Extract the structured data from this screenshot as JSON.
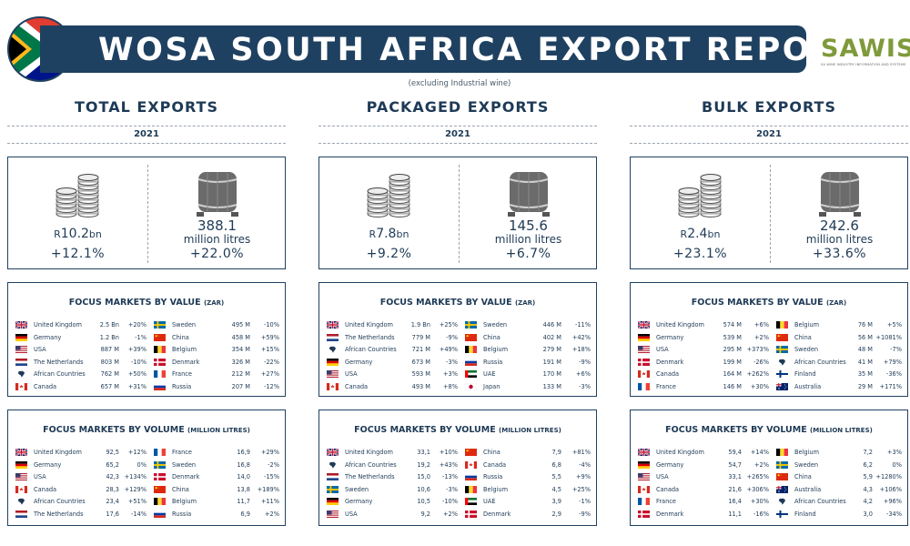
{
  "header": {
    "title": "WOSA SOUTH AFRICA EXPORT REPORT",
    "subtitle": "(excluding Industrial wine)",
    "logo_text": "SAWIS",
    "logo_sub": "SA WINE INDUSTRY INFORMATION AND SYSTEMS"
  },
  "labels": {
    "value_title": "FOCUS MARKETS BY VALUE",
    "value_unit": "(ZAR)",
    "volume_title": "FOCUS MARKETS BY VOLUME",
    "volume_unit": "(MILLION LITRES)"
  },
  "colors": {
    "navy": "#1f4161",
    "sawis_green": "#7f9a3a"
  },
  "columns": [
    {
      "title": "TOTAL EXPORTS",
      "year": "2021",
      "kpi": {
        "currency": "R",
        "value": "10.2",
        "value_suffix": "bn",
        "value_growth": "+12.1%",
        "volume": "388.1",
        "volume_unit": "million litres",
        "volume_growth": "+22.0%"
      },
      "value_left": [
        {
          "country": "United Kingdom",
          "flag": "uk",
          "amount": "2.5 Bn",
          "change": "+20%"
        },
        {
          "country": "Germany",
          "flag": "de",
          "amount": "1.2 Bn",
          "change": "-1%"
        },
        {
          "country": "USA",
          "flag": "us",
          "amount": "887 M",
          "change": "+39%"
        },
        {
          "country": "The Netherlands",
          "flag": "nl",
          "amount": "803 M",
          "change": "-10%"
        },
        {
          "country": "African Countries",
          "flag": "af",
          "amount": "762 M",
          "change": "+50%"
        },
        {
          "country": "Canada",
          "flag": "ca",
          "amount": "657 M",
          "change": "+31%"
        }
      ],
      "value_right": [
        {
          "country": "Sweden",
          "flag": "se",
          "amount": "495 M",
          "change": "-10%"
        },
        {
          "country": "China",
          "flag": "cn",
          "amount": "458 M",
          "change": "+59%"
        },
        {
          "country": "Belgium",
          "flag": "be",
          "amount": "354 M",
          "change": "+15%"
        },
        {
          "country": "Denmark",
          "flag": "dk",
          "amount": "326 M",
          "change": "-22%"
        },
        {
          "country": "France",
          "flag": "fr",
          "amount": "212 M",
          "change": "+27%"
        },
        {
          "country": "Russia",
          "flag": "ru",
          "amount": "207 M",
          "change": "-12%"
        }
      ],
      "volume_left": [
        {
          "country": "United Kingdom",
          "flag": "uk",
          "amount": "92,5",
          "change": "+12%"
        },
        {
          "country": "Germany",
          "flag": "de",
          "amount": "65,2",
          "change": "0%"
        },
        {
          "country": "USA",
          "flag": "us",
          "amount": "42,3",
          "change": "+134%"
        },
        {
          "country": "Canada",
          "flag": "ca",
          "amount": "28,3",
          "change": "+129%"
        },
        {
          "country": "African Countries",
          "flag": "af",
          "amount": "23,4",
          "change": "+51%"
        },
        {
          "country": "The Netherlands",
          "flag": "nl",
          "amount": "17,6",
          "change": "-14%"
        }
      ],
      "volume_right": [
        {
          "country": "France",
          "flag": "fr",
          "amount": "16,9",
          "change": "+29%"
        },
        {
          "country": "Sweden",
          "flag": "se",
          "amount": "16,8",
          "change": "-2%"
        },
        {
          "country": "Denmark",
          "flag": "dk",
          "amount": "14,0",
          "change": "-15%"
        },
        {
          "country": "China",
          "flag": "cn",
          "amount": "13,8",
          "change": "+189%"
        },
        {
          "country": "Belgium",
          "flag": "be",
          "amount": "11,7",
          "change": "+11%"
        },
        {
          "country": "Russia",
          "flag": "ru",
          "amount": "6,9",
          "change": "+2%"
        }
      ]
    },
    {
      "title": "PACKAGED EXPORTS",
      "year": "2021",
      "kpi": {
        "currency": "R",
        "value": "7.8",
        "value_suffix": "bn",
        "value_growth": "+9.2%",
        "volume": "145.6",
        "volume_unit": "million litres",
        "volume_growth": "+6.7%"
      },
      "value_left": [
        {
          "country": "United Kingdom",
          "flag": "uk",
          "amount": "1.9 Bn",
          "change": "+25%"
        },
        {
          "country": "The Netherlands",
          "flag": "nl",
          "amount": "779 M",
          "change": "-9%"
        },
        {
          "country": "African Countries",
          "flag": "af",
          "amount": "721 M",
          "change": "+49%"
        },
        {
          "country": "Germany",
          "flag": "de",
          "amount": "673 M",
          "change": "-3%"
        },
        {
          "country": "USA",
          "flag": "us",
          "amount": "593 M",
          "change": "+3%"
        },
        {
          "country": "Canada",
          "flag": "ca",
          "amount": "493 M",
          "change": "+8%"
        }
      ],
      "value_right": [
        {
          "country": "Sweden",
          "flag": "se",
          "amount": "446 M",
          "change": "-11%"
        },
        {
          "country": "China",
          "flag": "cn",
          "amount": "402 M",
          "change": "+42%"
        },
        {
          "country": "Belgium",
          "flag": "be",
          "amount": "279 M",
          "change": "+18%"
        },
        {
          "country": "Russia",
          "flag": "ru",
          "amount": "191 M",
          "change": "-9%"
        },
        {
          "country": "UAE",
          "flag": "ae",
          "amount": "170 M",
          "change": "+6%"
        },
        {
          "country": "Japan",
          "flag": "jp",
          "amount": "133 M",
          "change": "-3%"
        }
      ],
      "volume_left": [
        {
          "country": "United Kingdom",
          "flag": "uk",
          "amount": "33,1",
          "change": "+10%"
        },
        {
          "country": "African Countries",
          "flag": "af",
          "amount": "19,2",
          "change": "+43%"
        },
        {
          "country": "The Netherlands",
          "flag": "nl",
          "amount": "15,0",
          "change": "-13%"
        },
        {
          "country": "Sweden",
          "flag": "se",
          "amount": "10,6",
          "change": "-3%"
        },
        {
          "country": "Germany",
          "flag": "de",
          "amount": "10,5",
          "change": "-10%"
        },
        {
          "country": "USA",
          "flag": "us",
          "amount": "9,2",
          "change": "+2%"
        }
      ],
      "volume_right": [
        {
          "country": "China",
          "flag": "cn",
          "amount": "7,9",
          "change": "+81%"
        },
        {
          "country": "Canada",
          "flag": "ca",
          "amount": "6,8",
          "change": "-4%"
        },
        {
          "country": "Russia",
          "flag": "ru",
          "amount": "5,5",
          "change": "+9%"
        },
        {
          "country": "Belgium",
          "flag": "be",
          "amount": "4,5",
          "change": "+25%"
        },
        {
          "country": "UAE",
          "flag": "ae",
          "amount": "3,9",
          "change": "-1%"
        },
        {
          "country": "Denmark",
          "flag": "dk",
          "amount": "2,9",
          "change": "-9%"
        }
      ]
    },
    {
      "title": "BULK EXPORTS",
      "year": "2021",
      "kpi": {
        "currency": "R",
        "value": "2.4",
        "value_suffix": "bn",
        "value_growth": "+23.1%",
        "volume": "242.6",
        "volume_unit": "million litres",
        "volume_growth": "+33.6%"
      },
      "value_left": [
        {
          "country": "United Kingdom",
          "flag": "uk",
          "amount": "574 M",
          "change": "+6%"
        },
        {
          "country": "Germany",
          "flag": "de",
          "amount": "539 M",
          "change": "+2%"
        },
        {
          "country": "USA",
          "flag": "us",
          "amount": "295 M",
          "change": "+373%"
        },
        {
          "country": "Denmark",
          "flag": "dk",
          "amount": "199 M",
          "change": "-26%"
        },
        {
          "country": "Canada",
          "flag": "ca",
          "amount": "164 M",
          "change": "+262%"
        },
        {
          "country": "France",
          "flag": "fr",
          "amount": "146 M",
          "change": "+30%"
        }
      ],
      "value_right": [
        {
          "country": "Belgium",
          "flag": "be",
          "amount": "76 M",
          "change": "+5%"
        },
        {
          "country": "China",
          "flag": "cn",
          "amount": "56 M",
          "change": "+1081%"
        },
        {
          "country": "Sweden",
          "flag": "se",
          "amount": "48 M",
          "change": "-7%"
        },
        {
          "country": "African Countries",
          "flag": "af",
          "amount": "41 M",
          "change": "+79%"
        },
        {
          "country": "Finland",
          "flag": "fi",
          "amount": "35 M",
          "change": "-36%"
        },
        {
          "country": "Australia",
          "flag": "au",
          "amount": "29 M",
          "change": "+171%"
        }
      ],
      "volume_left": [
        {
          "country": "United Kingdom",
          "flag": "uk",
          "amount": "59,4",
          "change": "+14%"
        },
        {
          "country": "Germany",
          "flag": "de",
          "amount": "54,7",
          "change": "+2%"
        },
        {
          "country": "USA",
          "flag": "us",
          "amount": "33,1",
          "change": "+265%"
        },
        {
          "country": "Canada",
          "flag": "ca",
          "amount": "21,6",
          "change": "+306%"
        },
        {
          "country": "France",
          "flag": "fr",
          "amount": "16,4",
          "change": "+30%"
        },
        {
          "country": "Denmark",
          "flag": "dk",
          "amount": "11,1",
          "change": "-16%"
        }
      ],
      "volume_right": [
        {
          "country": "Belgium",
          "flag": "be",
          "amount": "7,2",
          "change": "+3%"
        },
        {
          "country": "Sweden",
          "flag": "se",
          "amount": "6,2",
          "change": "0%"
        },
        {
          "country": "China",
          "flag": "cn",
          "amount": "5,9",
          "change": "+1280%"
        },
        {
          "country": "Australia",
          "flag": "au",
          "amount": "4,3",
          "change": "+106%"
        },
        {
          "country": "African Countries",
          "flag": "af",
          "amount": "4,2",
          "change": "+96%"
        },
        {
          "country": "Finland",
          "flag": "fi",
          "amount": "3,0",
          "change": "-34%"
        }
      ]
    }
  ]
}
